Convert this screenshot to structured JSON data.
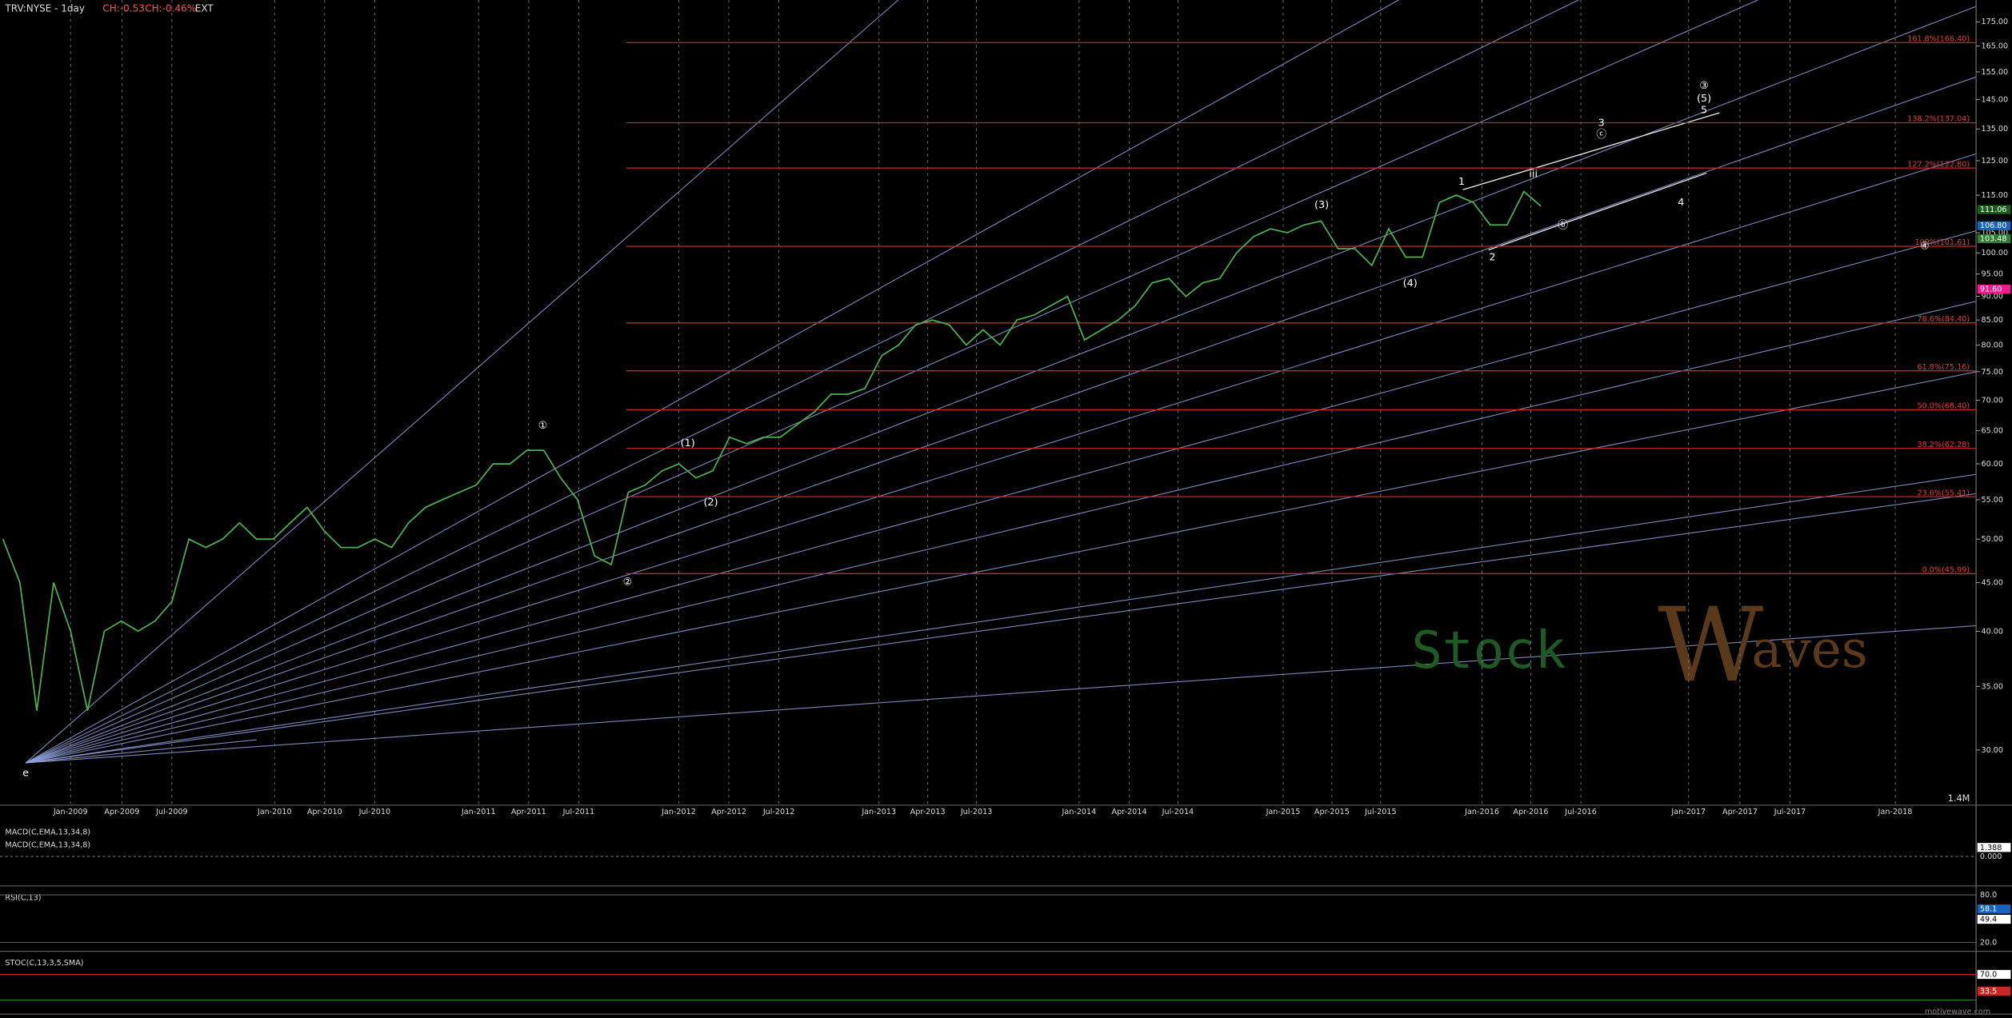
{
  "header": {
    "symbol": "TRV:NYSE - 1day",
    "change": "CH:-0.53",
    "change_pct": "CH:-0.46%",
    "session": "EXT"
  },
  "price_axis": {
    "log_scale": true,
    "ticks": [
      {
        "value": 30,
        "label": "30.00"
      },
      {
        "value": 35,
        "label": "35.00"
      },
      {
        "value": 40,
        "label": "40.00"
      },
      {
        "value": 45,
        "label": "45.00"
      },
      {
        "value": 50,
        "label": "50.00"
      },
      {
        "value": 55,
        "label": "55.00"
      },
      {
        "value": 60,
        "label": "60.00"
      },
      {
        "value": 65,
        "label": "65.00"
      },
      {
        "value": 70,
        "label": "70.00"
      },
      {
        "value": 75,
        "label": "75.00"
      },
      {
        "value": 80,
        "label": "80.00"
      },
      {
        "value": 85,
        "label": "85.00"
      },
      {
        "value": 90,
        "label": "90.00"
      },
      {
        "value": 95,
        "label": "95.00"
      },
      {
        "value": 100,
        "label": "100.00"
      },
      {
        "value": 105,
        "label": "105.00"
      },
      {
        "value": 115,
        "label": "115.00"
      },
      {
        "value": 125,
        "label": "125.00"
      },
      {
        "value": 135,
        "label": "135.00"
      },
      {
        "value": 145,
        "label": "145.00"
      },
      {
        "value": 155,
        "label": "155.00"
      },
      {
        "value": 165,
        "label": "165.00"
      },
      {
        "value": 175,
        "label": "175.00"
      }
    ]
  },
  "time_axis": {
    "labels": [
      "Jan-2009",
      "Apr-2009",
      "Jul-2009",
      "Jan-2010",
      "Apr-2010",
      "Jul-2010",
      "Jan-2011",
      "Apr-2011",
      "Jul-2011",
      "Jan-2012",
      "Apr-2012",
      "Jul-2012",
      "Jan-2013",
      "Apr-2013",
      "Jul-2013",
      "Jan-2014",
      "Apr-2014",
      "Jul-2014",
      "Jan-2015",
      "Apr-2015",
      "Jul-2015",
      "Jan-2016",
      "Apr-2016",
      "Jul-2016",
      "Jan-2017",
      "Apr-2017",
      "Jul-2017",
      "Jan-2018"
    ]
  },
  "fib_levels": [
    {
      "value": 45.99,
      "label": "0.0%(45.99)"
    },
    {
      "value": 55.41,
      "label": "23.6%(55.41)"
    },
    {
      "value": 62.28,
      "label": "38.2%(62.28)"
    },
    {
      "value": 68.4,
      "label": "50.0%(68.40)"
    },
    {
      "value": 75.16,
      "label": "61.8%(75.16)"
    },
    {
      "value": 84.4,
      "label": "78.6%(84.40)"
    },
    {
      "value": 101.61,
      "label": "100%(101.61)"
    },
    {
      "value": 122.8,
      "label": "127.2%(122.80)"
    },
    {
      "value": 137.04,
      "label": "138.2%(137.04)"
    },
    {
      "value": 166.4,
      "label": "161.8%(166.40)"
    }
  ],
  "price_series": [
    50,
    45,
    33,
    45,
    40,
    33,
    40,
    41,
    40,
    41,
    43,
    50,
    49,
    50,
    52,
    50,
    50,
    52,
    54,
    51,
    49,
    49,
    50,
    49,
    52,
    54,
    55,
    56,
    57,
    60,
    60,
    62,
    62,
    58,
    55,
    48,
    47,
    56,
    57,
    59,
    60,
    58,
    59,
    64,
    63,
    64,
    64,
    66,
    68,
    71,
    71,
    72,
    78,
    80,
    84,
    85,
    84,
    80,
    83,
    80,
    85,
    86,
    88,
    90,
    81,
    83,
    85,
    88,
    93,
    94,
    90,
    93,
    94,
    100,
    104,
    106,
    105,
    107,
    108,
    101,
    101,
    97,
    106,
    99,
    99,
    113,
    115,
    113,
    107,
    107,
    116,
    112
  ],
  "price_markers": [
    {
      "value": 111.06,
      "label": "111.06",
      "color": "#1b5e20"
    },
    {
      "value": 106.8,
      "label": "106.80",
      "color": "#1565c0"
    },
    {
      "value": 103.48,
      "label": "103.48",
      "color": "#2e7d32"
    },
    {
      "value": 91.6,
      "label": "91.60",
      "color": "#e91e8c"
    }
  ],
  "wave_labels": [
    "e",
    "①",
    "②",
    "(1)",
    "(2)",
    "(3)",
    "(4)",
    "1",
    "2",
    "iii",
    "ⓑ",
    "4",
    "3",
    "ⓒ",
    "③",
    "(5)",
    "5",
    "④"
  ],
  "volume_label": "1.4M",
  "macd": {
    "title": "MACD(C,EMA,13,34,8)",
    "title2": "MACD(C,EMA,13,34,8)",
    "value": "1.388",
    "zero": "0.000"
  },
  "rsi": {
    "title": "RSI(C,13)",
    "upper": "80.0",
    "lower": "20.0",
    "value": "58.1",
    "value2": "49.4"
  },
  "stoch": {
    "title": "STOC(C,13,3,5,SMA)",
    "upper": "70.0",
    "value": "33.5"
  },
  "logo": {
    "left": "Stock",
    "w": "W",
    "right": "aves"
  },
  "watermark": "motivewave.com"
}
